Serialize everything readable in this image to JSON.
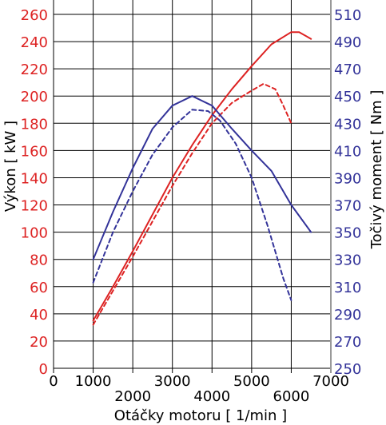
{
  "colors": {
    "power": "#dd2222",
    "torque": "#333399",
    "grid": "#000000",
    "right_axis": "#999999"
  },
  "chart_data": {
    "type": "line",
    "xlabel": "Otáčky motoru [ 1/min ]",
    "ylabel_left": "Výkon [ kW ]",
    "ylabel_right": "Točivý moment [ Nm ]",
    "xlim": [
      0,
      7000
    ],
    "ylim_left": [
      0,
      260
    ],
    "ylim_right": [
      250,
      510
    ],
    "x_ticks_top_row": [
      "0",
      "1000",
      "3000",
      "5000",
      "7000"
    ],
    "x_ticks_bottom_row": [
      "2000",
      "4000",
      "6000"
    ],
    "y_ticks_left": [
      "0",
      "20",
      "40",
      "60",
      "80",
      "100",
      "120",
      "140",
      "160",
      "180",
      "200",
      "220",
      "240",
      "260"
    ],
    "y_ticks_right": [
      "250",
      "270",
      "290",
      "310",
      "330",
      "350",
      "370",
      "390",
      "410",
      "430",
      "450",
      "470",
      "490",
      "510"
    ],
    "grid": true,
    "series": [
      {
        "axis": "left",
        "style": "solid",
        "color": "#dd2222",
        "x": [
          1000,
          1500,
          2000,
          2500,
          3000,
          3500,
          4000,
          4500,
          5000,
          5500,
          6000,
          6200,
          6500
        ],
        "y": [
          35,
          60,
          86,
          113,
          140,
          164,
          186,
          205,
          222,
          238,
          247,
          247,
          242
        ]
      },
      {
        "axis": "left",
        "style": "dashed",
        "color": "#dd2222",
        "x": [
          1000,
          1500,
          2000,
          2500,
          3000,
          3500,
          4000,
          4500,
          5000,
          5300,
          5600,
          5800,
          6000
        ],
        "y": [
          32,
          57,
          82,
          108,
          134,
          158,
          180,
          195,
          204,
          209,
          205,
          193,
          180
        ]
      },
      {
        "axis": "right",
        "style": "solid",
        "color": "#333399",
        "x": [
          1000,
          1500,
          2000,
          2500,
          3000,
          3500,
          4000,
          4500,
          5000,
          5500,
          6000,
          6500
        ],
        "y": [
          330,
          365,
          397,
          426,
          443,
          450,
          443,
          426,
          410,
          395,
          370,
          350
        ]
      },
      {
        "axis": "right",
        "style": "dashed",
        "color": "#333399",
        "x": [
          1000,
          1500,
          2000,
          2500,
          3000,
          3500,
          3900,
          4200,
          4600,
          5000,
          5400,
          5800,
          6000
        ],
        "y": [
          313,
          350,
          380,
          407,
          427,
          440,
          439,
          432,
          415,
          390,
          355,
          316,
          300
        ]
      }
    ]
  }
}
